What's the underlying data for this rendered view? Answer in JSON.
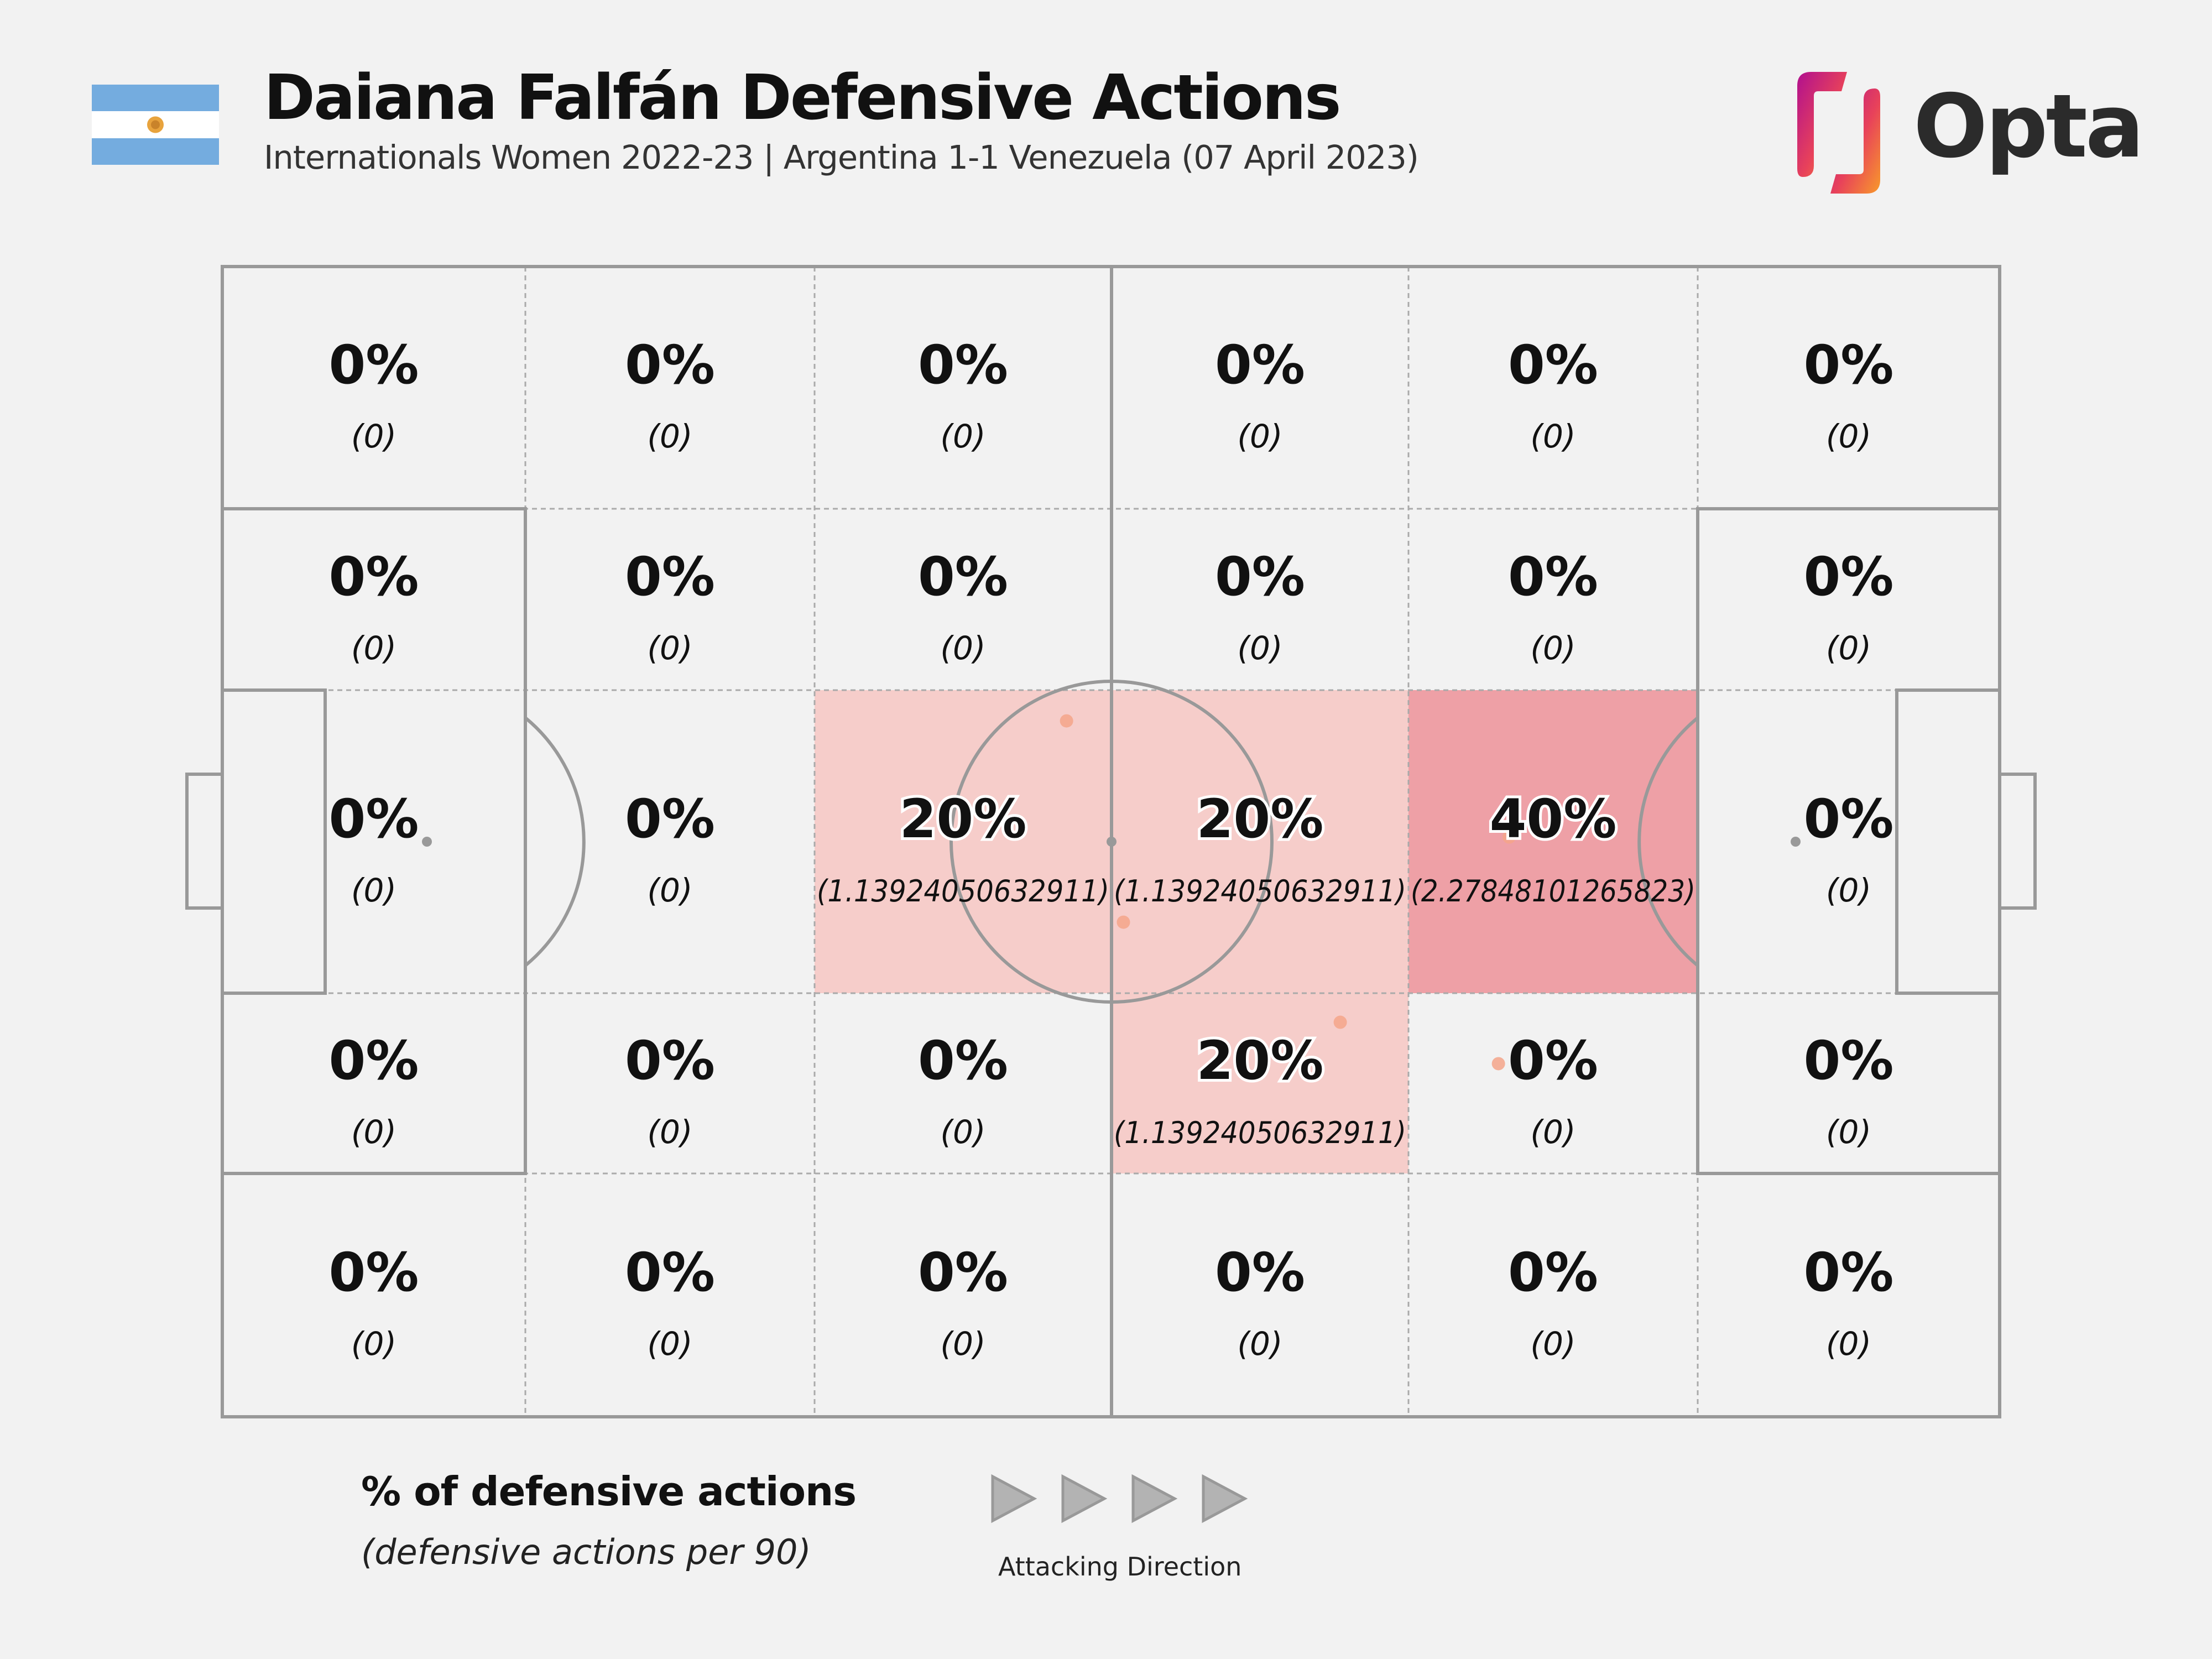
{
  "header": {
    "title": "Daiana Falfán Defensive Actions",
    "subtitle": "Internationals Women 2022-23 | Argentina 1-1 Venezuela (07 April 2023)",
    "logo_text": "Opta",
    "flag": "argentina-flag"
  },
  "legend": {
    "title": "% of defensive actions",
    "subtitle": "(defensive actions per 90)",
    "direction_label": "Attacking Direction"
  },
  "colors": {
    "background": "#f2f2f2",
    "lines": "#999999",
    "zone_low": "#f6cdca",
    "zone_high": "#eea0a6",
    "action_dot": "#f4a48a"
  },
  "chart_data": {
    "type": "heatmap",
    "columns": 6,
    "rows": 5,
    "row_order": "top-to-bottom",
    "cells": [
      [
        {
          "pct": "0%",
          "val": "(0)"
        },
        {
          "pct": "0%",
          "val": "(0)"
        },
        {
          "pct": "0%",
          "val": "(0)"
        },
        {
          "pct": "0%",
          "val": "(0)"
        },
        {
          "pct": "0%",
          "val": "(0)"
        },
        {
          "pct": "0%",
          "val": "(0)"
        }
      ],
      [
        {
          "pct": "0%",
          "val": "(0)"
        },
        {
          "pct": "0%",
          "val": "(0)"
        },
        {
          "pct": "0%",
          "val": "(0)"
        },
        {
          "pct": "0%",
          "val": "(0)"
        },
        {
          "pct": "0%",
          "val": "(0)"
        },
        {
          "pct": "0%",
          "val": "(0)"
        }
      ],
      [
        {
          "pct": "0%",
          "val": "(0)"
        },
        {
          "pct": "0%",
          "val": "(0)"
        },
        {
          "pct": "20%",
          "val": "(1.13924050632911)"
        },
        {
          "pct": "20%",
          "val": "(1.13924050632911)"
        },
        {
          "pct": "40%",
          "val": "(2.27848101265823)"
        },
        {
          "pct": "0%",
          "val": "(0)"
        }
      ],
      [
        {
          "pct": "0%",
          "val": "(0)"
        },
        {
          "pct": "0%",
          "val": "(0)"
        },
        {
          "pct": "0%",
          "val": "(0)"
        },
        {
          "pct": "20%",
          "val": "(1.13924050632911)"
        },
        {
          "pct": "0%",
          "val": "(0)"
        },
        {
          "pct": "0%",
          "val": "(0)"
        }
      ],
      [
        {
          "pct": "0%",
          "val": "(0)"
        },
        {
          "pct": "0%",
          "val": "(0)"
        },
        {
          "pct": "0%",
          "val": "(0)"
        },
        {
          "pct": "0%",
          "val": "(0)"
        },
        {
          "pct": "0%",
          "val": "(0)"
        },
        {
          "pct": "0%",
          "val": "(0)"
        }
      ]
    ],
    "actions": [
      {
        "x": 47.5,
        "y": 60.5
      },
      {
        "x": 50.7,
        "y": 43.0
      },
      {
        "x": 72.4,
        "y": 50.4
      },
      {
        "x": 71.8,
        "y": 30.7
      },
      {
        "x": 62.9,
        "y": 34.3
      }
    ]
  }
}
